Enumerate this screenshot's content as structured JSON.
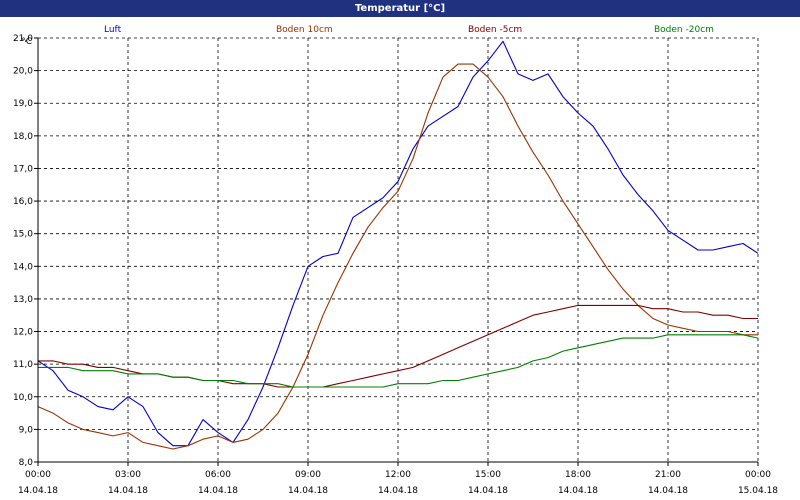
{
  "window": {
    "title": "Temperatur [°C]"
  },
  "chart_data": {
    "type": "line",
    "title": "Temperatur [°C]",
    "ylabel": "°C",
    "xlabel": "",
    "ylim": [
      8,
      21
    ],
    "xlim": [
      "14.04.18 00:00",
      "15.04.18 00:00"
    ],
    "grid": true,
    "legend_position": "top",
    "y_ticks": [
      "8,0",
      "9,0",
      "10,0",
      "11,0",
      "12,0",
      "13,0",
      "14,0",
      "15,0",
      "16,0",
      "17,0",
      "18,0",
      "19,0",
      "20,0",
      "21,0"
    ],
    "x_ticks": [
      {
        "time": "00:00",
        "date": "14.04.18"
      },
      {
        "time": "03:00",
        "date": "14.04.18"
      },
      {
        "time": "06:00",
        "date": "14.04.18"
      },
      {
        "time": "09:00",
        "date": "14.04.18"
      },
      {
        "time": "12:00",
        "date": "14.04.18"
      },
      {
        "time": "15:00",
        "date": "14.04.18"
      },
      {
        "time": "18:00",
        "date": "14.04.18"
      },
      {
        "time": "21:00",
        "date": "14.04.18"
      },
      {
        "time": "00:00",
        "date": "15.04.18"
      }
    ],
    "x": [
      "00:00",
      "00:30",
      "01:00",
      "01:30",
      "02:00",
      "02:30",
      "03:00",
      "03:30",
      "04:00",
      "04:30",
      "05:00",
      "05:30",
      "06:00",
      "06:30",
      "07:00",
      "07:30",
      "08:00",
      "08:30",
      "09:00",
      "09:30",
      "10:00",
      "10:30",
      "11:00",
      "11:30",
      "12:00",
      "12:30",
      "13:00",
      "13:30",
      "14:00",
      "14:30",
      "15:00",
      "15:30",
      "16:00",
      "16:30",
      "17:00",
      "17:30",
      "18:00",
      "18:30",
      "19:00",
      "19:30",
      "20:00",
      "20:30",
      "21:00",
      "21:30",
      "22:00",
      "22:30",
      "23:00",
      "23:30",
      "00:00"
    ],
    "series": [
      {
        "name": "Luft",
        "color": "#0000cc",
        "values": [
          11.1,
          10.8,
          10.2,
          10.0,
          9.7,
          9.6,
          10.0,
          9.7,
          8.9,
          8.5,
          8.5,
          9.3,
          8.9,
          8.6,
          9.3,
          10.3,
          11.5,
          12.8,
          14.0,
          14.3,
          14.4,
          15.5,
          15.8,
          16.1,
          16.6,
          17.6,
          18.3,
          18.6,
          18.9,
          19.8,
          20.3,
          20.9,
          19.9,
          19.7,
          19.9,
          19.2,
          18.7,
          18.3,
          17.6,
          16.8,
          16.2,
          15.7,
          15.1,
          14.8,
          14.5,
          14.5,
          14.6,
          14.7,
          14.4
        ]
      },
      {
        "name": "Boden 10cm",
        "color": "#993300",
        "values": [
          9.7,
          9.5,
          9.2,
          9.0,
          8.9,
          8.8,
          8.9,
          8.6,
          8.5,
          8.4,
          8.5,
          8.7,
          8.8,
          8.6,
          8.7,
          9.0,
          9.5,
          10.3,
          11.3,
          12.5,
          13.5,
          14.4,
          15.2,
          15.8,
          16.3,
          17.3,
          18.7,
          19.8,
          20.2,
          20.2,
          19.8,
          19.2,
          18.3,
          17.5,
          16.8,
          16.0,
          15.3,
          14.6,
          13.9,
          13.3,
          12.8,
          12.4,
          12.2,
          12.1,
          12.0,
          12.0,
          12.0,
          11.9,
          11.9
        ]
      },
      {
        "name": "Boden -5cm",
        "color": "#800000",
        "values": [
          11.1,
          11.1,
          11.0,
          11.0,
          10.9,
          10.9,
          10.8,
          10.7,
          10.7,
          10.6,
          10.6,
          10.5,
          10.5,
          10.4,
          10.4,
          10.4,
          10.3,
          10.3,
          10.3,
          10.3,
          10.4,
          10.5,
          10.6,
          10.7,
          10.8,
          10.9,
          11.1,
          11.3,
          11.5,
          11.7,
          11.9,
          12.1,
          12.3,
          12.5,
          12.6,
          12.7,
          12.8,
          12.8,
          12.8,
          12.8,
          12.8,
          12.7,
          12.7,
          12.6,
          12.6,
          12.5,
          12.5,
          12.4,
          12.4
        ]
      },
      {
        "name": "Boden -20cm",
        "color": "#008000",
        "values": [
          10.9,
          10.9,
          10.9,
          10.8,
          10.8,
          10.8,
          10.7,
          10.7,
          10.7,
          10.6,
          10.6,
          10.5,
          10.5,
          10.5,
          10.4,
          10.4,
          10.4,
          10.3,
          10.3,
          10.3,
          10.3,
          10.3,
          10.3,
          10.3,
          10.4,
          10.4,
          10.4,
          10.5,
          10.5,
          10.6,
          10.7,
          10.8,
          10.9,
          11.1,
          11.2,
          11.4,
          11.5,
          11.6,
          11.7,
          11.8,
          11.8,
          11.8,
          11.9,
          11.9,
          11.9,
          11.9,
          11.9,
          11.9,
          11.8
        ]
      }
    ]
  }
}
